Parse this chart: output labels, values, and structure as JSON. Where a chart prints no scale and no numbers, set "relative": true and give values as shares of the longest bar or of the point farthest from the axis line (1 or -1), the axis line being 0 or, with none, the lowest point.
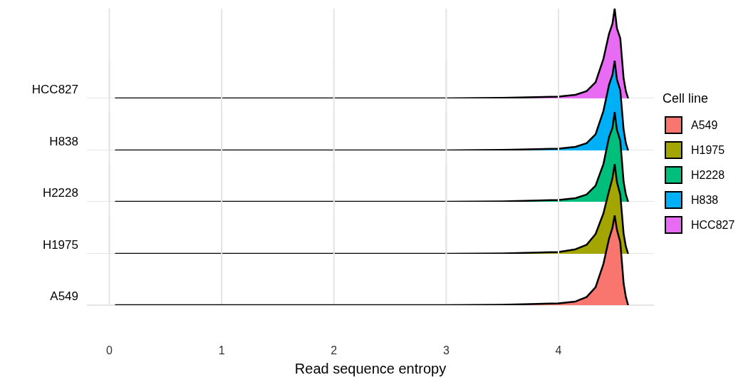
{
  "chart_data": [
    {
      "type": "area",
      "relative": true,
      "grid": true,
      "legend": "right",
      "tick_labels": false,
      "x": [
        0.05,
        1,
        2,
        3,
        3.5,
        4,
        4.15,
        4.25,
        4.33,
        4.4,
        4.45,
        4.48,
        4.5,
        4.52,
        4.55,
        4.58,
        4.6,
        4.62
      ],
      "xlim": [
        -0.2,
        4.85
      ],
      "xticks": [
        0,
        1,
        2,
        3,
        4
      ],
      "series": [
        {
          "name": "HCC827",
          "color": "#e76bf3",
          "values": [
            0,
            0,
            0,
            0,
            0.005,
            0.02,
            0.04,
            0.08,
            0.18,
            0.44,
            0.72,
            0.83,
            1,
            0.78,
            0.67,
            0.22,
            0.08,
            0
          ]
        }
      ]
    },
    {
      "type": "area",
      "relative": true,
      "grid": true,
      "legend": "right",
      "tick_labels": false,
      "x": [
        0.05,
        1,
        2,
        3,
        3.5,
        4,
        4.15,
        4.25,
        4.33,
        4.4,
        4.45,
        4.48,
        4.5,
        4.52,
        4.55,
        4.58,
        4.6,
        4.62
      ],
      "xlim": [
        -0.2,
        4.85
      ],
      "xticks": [
        0,
        1,
        2,
        3,
        4
      ],
      "series": [
        {
          "name": "H838",
          "color": "#00b0f6",
          "values": [
            0,
            0,
            0,
            0,
            0.005,
            0.02,
            0.04,
            0.08,
            0.18,
            0.44,
            0.73,
            0.84,
            1,
            0.79,
            0.67,
            0.23,
            0.08,
            0
          ]
        }
      ]
    },
    {
      "type": "area",
      "relative": true,
      "grid": true,
      "legend": "right",
      "tick_labels": false,
      "x": [
        0.05,
        1,
        2,
        3,
        3.5,
        4,
        4.15,
        4.25,
        4.33,
        4.4,
        4.45,
        4.48,
        4.5,
        4.52,
        4.55,
        4.58,
        4.6,
        4.62
      ],
      "xlim": [
        -0.2,
        4.85
      ],
      "xticks": [
        0,
        1,
        2,
        3,
        4
      ],
      "series": [
        {
          "name": "H2228",
          "color": "#00bf7d",
          "values": [
            0,
            0,
            0,
            0,
            0.004,
            0.02,
            0.04,
            0.08,
            0.18,
            0.42,
            0.72,
            0.82,
            1,
            0.8,
            0.68,
            0.22,
            0.08,
            0
          ]
        }
      ]
    },
    {
      "type": "area",
      "relative": true,
      "grid": true,
      "legend": "right",
      "tick_labels": false,
      "x": [
        0.05,
        1,
        2,
        3,
        3.5,
        4,
        4.15,
        4.25,
        4.33,
        4.4,
        4.45,
        4.48,
        4.5,
        4.52,
        4.55,
        4.58,
        4.6,
        4.62
      ],
      "xlim": [
        -0.2,
        4.85
      ],
      "xticks": [
        0,
        1,
        2,
        3,
        4
      ],
      "series": [
        {
          "name": "H1975",
          "color": "#a3a500",
          "values": [
            0,
            0,
            0,
            0,
            0.004,
            0.02,
            0.05,
            0.1,
            0.22,
            0.45,
            0.7,
            0.84,
            1,
            0.8,
            0.66,
            0.22,
            0.08,
            0
          ]
        }
      ]
    },
    {
      "type": "area",
      "relative": true,
      "grid": true,
      "legend": "right",
      "tick_labels": "x",
      "xlabel": "Read sequence entropy",
      "legend_title": "Cell line",
      "x": [
        0.05,
        1,
        2,
        3,
        3.5,
        4,
        4.15,
        4.25,
        4.33,
        4.4,
        4.45,
        4.48,
        4.5,
        4.52,
        4.55,
        4.58,
        4.6,
        4.62
      ],
      "xlim": [
        -0.2,
        4.85
      ],
      "xticks": [
        0,
        1,
        2,
        3,
        4
      ],
      "series": [
        {
          "name": "A549",
          "color": "#f8766d",
          "values": [
            0,
            0,
            0,
            0,
            0.004,
            0.02,
            0.04,
            0.09,
            0.2,
            0.46,
            0.74,
            0.86,
            1,
            0.84,
            0.7,
            0.24,
            0.09,
            0
          ]
        }
      ]
    }
  ]
}
